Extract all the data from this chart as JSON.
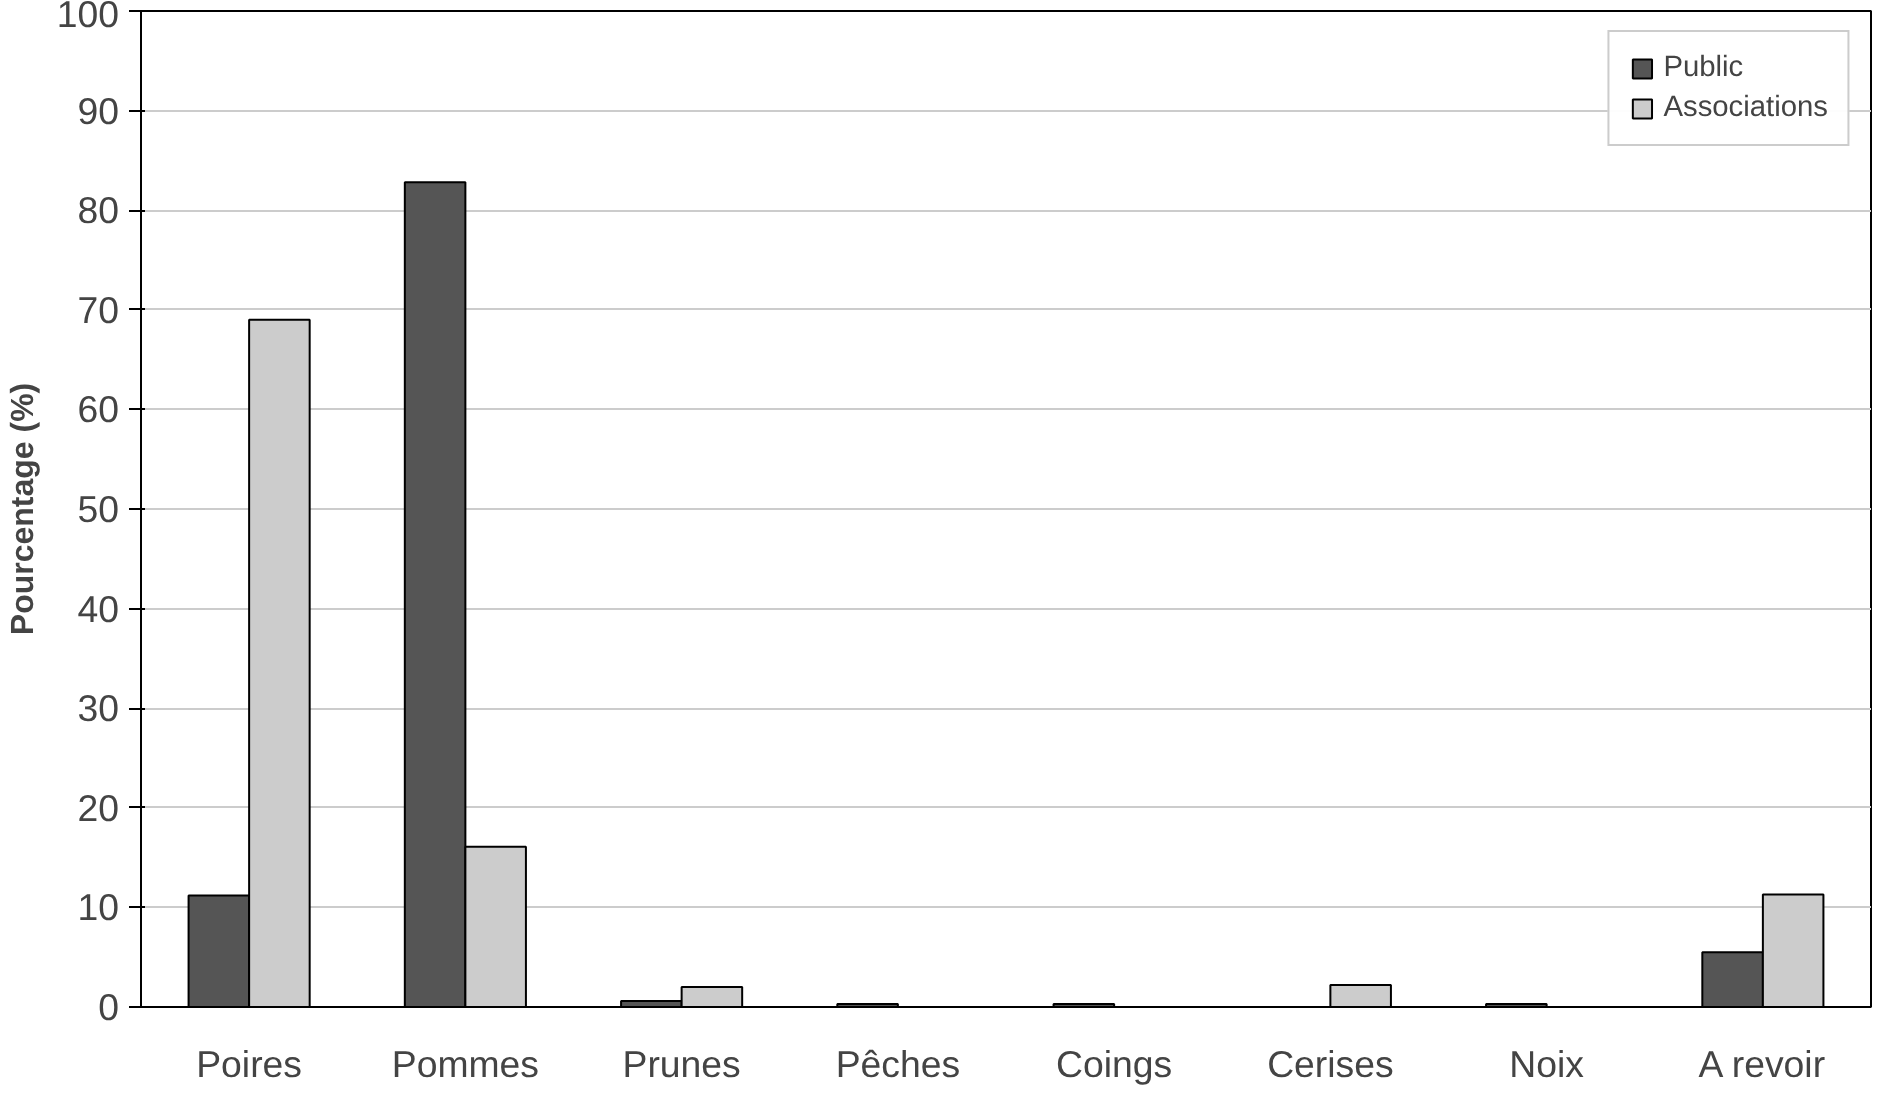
{
  "chart_data": {
    "type": "bar",
    "ylabel": "Pourcentage (%)",
    "categories": [
      "Poires",
      "Pommes",
      "Prunes",
      "Pêches",
      "Coings",
      "Cerises",
      "Noix",
      "A revoir"
    ],
    "series": [
      {
        "name": "Public",
        "color": "#555555",
        "values": [
          11.2,
          82.8,
          0.6,
          0.3,
          0.3,
          0,
          0.3,
          5.5
        ]
      },
      {
        "name": "Associations",
        "color": "#cccccc",
        "values": [
          69,
          16.1,
          2,
          0,
          0,
          2.2,
          0,
          11.3
        ]
      }
    ],
    "ylim": [
      0,
      100
    ],
    "yticks": [
      0,
      10,
      20,
      30,
      40,
      50,
      60,
      70,
      80,
      90,
      100
    ],
    "grid": "y",
    "legend": "top right"
  }
}
